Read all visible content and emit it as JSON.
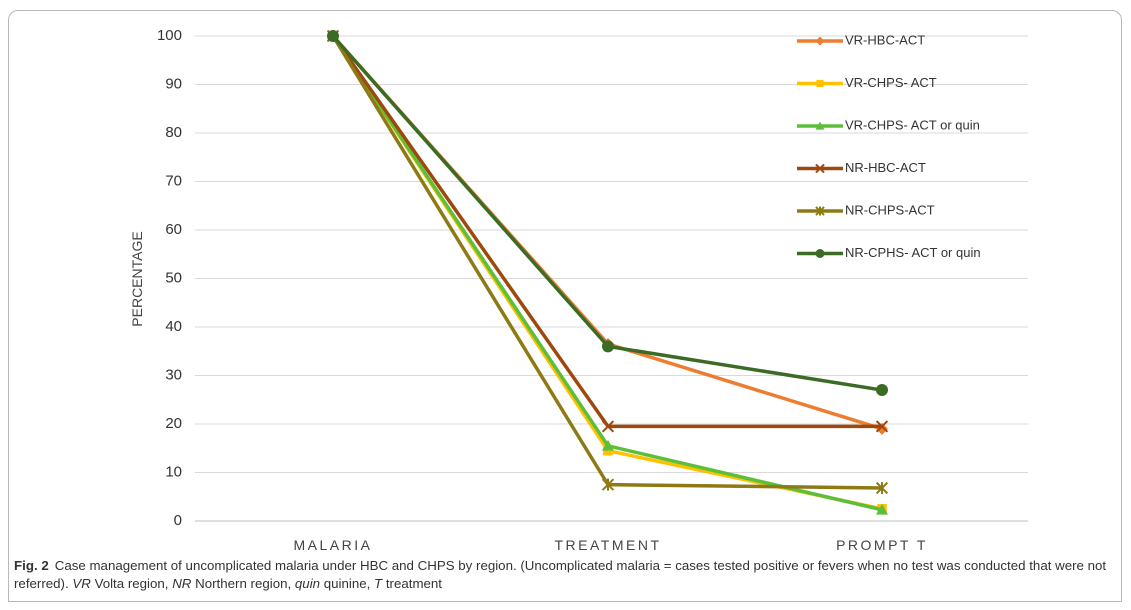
{
  "chart_data": {
    "type": "line",
    "categories": [
      "MALARIA",
      "TREATMENT",
      "PROMPT T"
    ],
    "ylabel": "PERCENTAGE",
    "xlabel": "",
    "ylim": [
      0,
      100
    ],
    "yticks": [
      0,
      10,
      20,
      30,
      40,
      50,
      60,
      70,
      80,
      90,
      100
    ],
    "grid": "horizontal",
    "legend_position": "right",
    "series": [
      {
        "name": "VR-HBC-ACT",
        "color": "#ed7d31",
        "marker": "diamond",
        "values": [
          100,
          36.5,
          19
        ]
      },
      {
        "name": "VR-CHPS- ACT",
        "color": "#ffc000",
        "marker": "square",
        "values": [
          100,
          14.5,
          2.5
        ]
      },
      {
        "name": "VR-CHPS- ACT or quin",
        "color": "#5cbf3a",
        "marker": "triangle",
        "values": [
          100,
          15.5,
          2.3
        ]
      },
      {
        "name": "NR-HBC-ACT",
        "color": "#9e480e",
        "marker": "x",
        "values": [
          100,
          19.5,
          19.5
        ]
      },
      {
        "name": "NR-CHPS-ACT",
        "color": "#8e7a14",
        "marker": "star",
        "values": [
          100,
          7.5,
          6.8
        ]
      },
      {
        "name": "NR-CPHS- ACT or quin",
        "color": "#3b6b24",
        "marker": "circle",
        "values": [
          100,
          36,
          27
        ]
      }
    ]
  },
  "caption": {
    "label": "Fig. 2",
    "t1": "Case management of uncomplicated malaria under HBC and CHPS by region. (Uncomplicated malaria = cases tested positive or fevers when no test was conducted that were not referred). ",
    "vr": "VR",
    "t2": " Volta region, ",
    "nr": "NR",
    "t3": " Northern region, ",
    "quin": "quin",
    "t4": " quinine, ",
    "t": "T",
    "t5": " treatment"
  }
}
